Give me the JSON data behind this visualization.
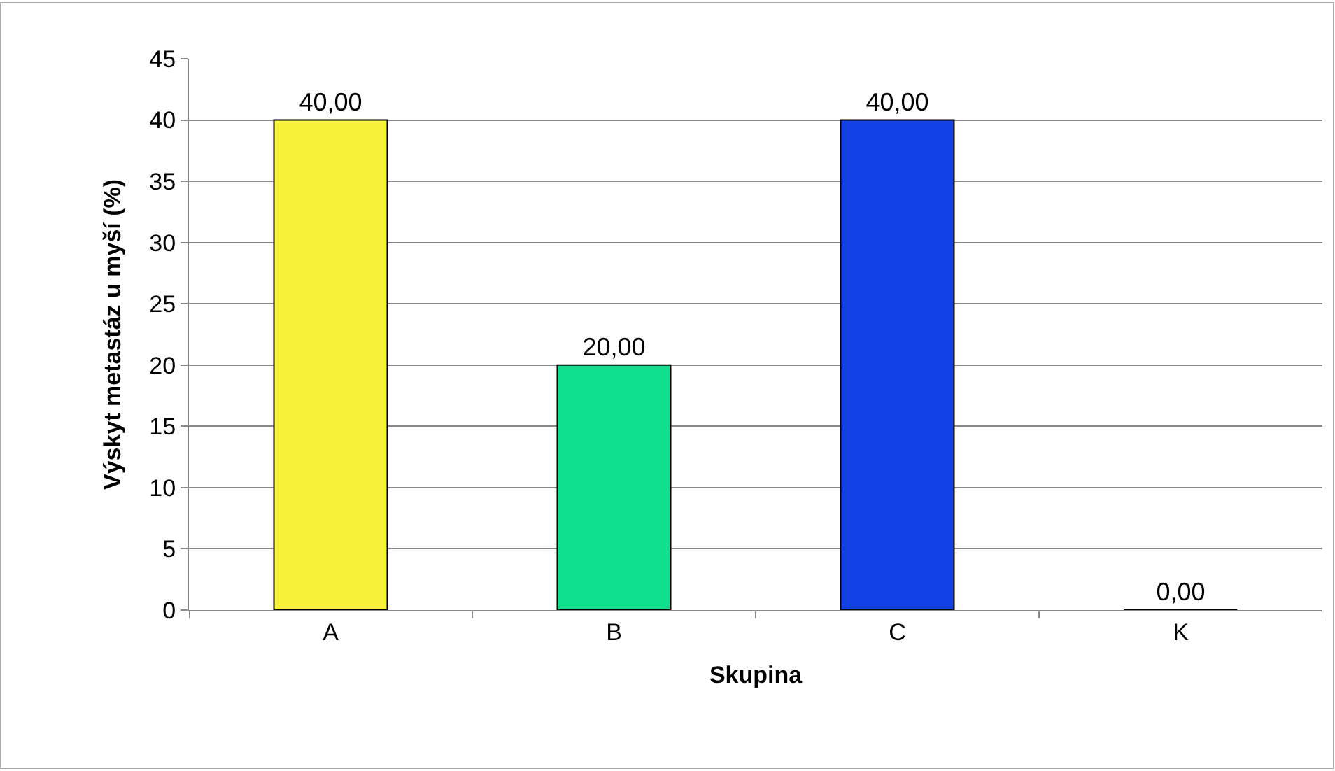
{
  "chart_data": {
    "type": "bar",
    "xlabel": "Skupina",
    "ylabel": "Výskyt metastáz u myší (%)",
    "categories": [
      "A",
      "B",
      "C",
      "K"
    ],
    "values": [
      40,
      20,
      40,
      0
    ],
    "value_labels": [
      "40,00",
      "20,00",
      "40,00",
      "0,00"
    ],
    "colors": [
      "#f7f23c",
      "#0fe08e",
      "#1240e4",
      null
    ],
    "ylim": [
      0,
      45
    ],
    "yticks": [
      0,
      5,
      10,
      15,
      20,
      25,
      30,
      35,
      40,
      45
    ],
    "grid": "y",
    "legend": false
  }
}
